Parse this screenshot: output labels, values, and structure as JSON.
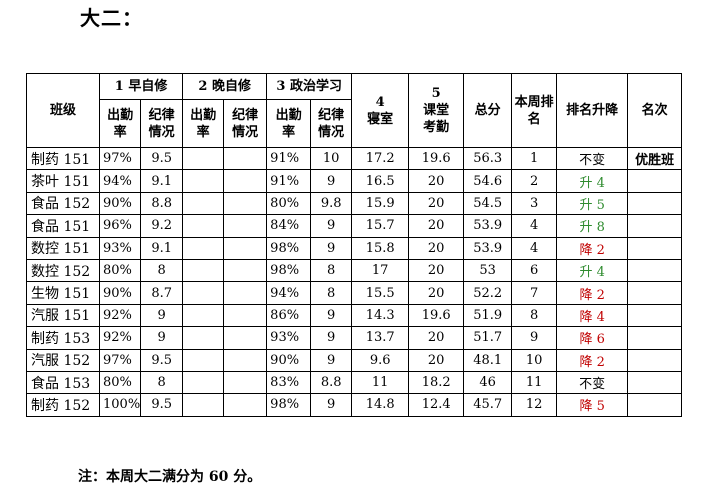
{
  "title": "大二：",
  "headers": {
    "class": "班级",
    "group1": "1 早自修",
    "group2": "2 晚自修",
    "group3": "3 政治学习",
    "attendance": "出勤率",
    "discipline": "纪律情况",
    "dorm_num": "4",
    "dorm": "寝室",
    "class_num": "5",
    "class_attendance": "课堂考勤",
    "total": "总分",
    "rank": "本周排名",
    "change": "排名升降",
    "honor": "名次"
  },
  "rows": [
    {
      "cls": "制药 151",
      "a1": "97%",
      "d1": "9.5",
      "a2": "",
      "d2": "",
      "a3": "91%",
      "d3": "10",
      "dorm": "17.2",
      "ca": "19.6",
      "total": "56.3",
      "rank": "1",
      "change": "不变",
      "change_dir": "same",
      "honor": "优胜班"
    },
    {
      "cls": "茶叶 151",
      "a1": "94%",
      "d1": "9.1",
      "a2": "",
      "d2": "",
      "a3": "91%",
      "d3": "9",
      "dorm": "16.5",
      "ca": "20",
      "total": "54.6",
      "rank": "2",
      "change": "升 4",
      "change_dir": "up",
      "honor": ""
    },
    {
      "cls": "食品 152",
      "a1": "90%",
      "d1": "8.8",
      "a2": "",
      "d2": "",
      "a3": "80%",
      "d3": "9.8",
      "dorm": "15.9",
      "ca": "20",
      "total": "54.5",
      "rank": "3",
      "change": "升 5",
      "change_dir": "up",
      "honor": ""
    },
    {
      "cls": "食品 151",
      "a1": "96%",
      "d1": "9.2",
      "a2": "",
      "d2": "",
      "a3": "84%",
      "d3": "9",
      "dorm": "15.7",
      "ca": "20",
      "total": "53.9",
      "rank": "4",
      "change": "升 8",
      "change_dir": "up",
      "honor": ""
    },
    {
      "cls": "数控 151",
      "a1": "93%",
      "d1": "9.1",
      "a2": "",
      "d2": "",
      "a3": "98%",
      "d3": "9",
      "dorm": "15.8",
      "ca": "20",
      "total": "53.9",
      "rank": "4",
      "change": "降 2",
      "change_dir": "down",
      "honor": ""
    },
    {
      "cls": "数控 152",
      "a1": "80%",
      "d1": "8",
      "a2": "",
      "d2": "",
      "a3": "98%",
      "d3": "8",
      "dorm": "17",
      "ca": "20",
      "total": "53",
      "rank": "6",
      "change": "升 4",
      "change_dir": "up",
      "honor": ""
    },
    {
      "cls": "生物 151",
      "a1": "90%",
      "d1": "8.7",
      "a2": "",
      "d2": "",
      "a3": "94%",
      "d3": "8",
      "dorm": "15.5",
      "ca": "20",
      "total": "52.2",
      "rank": "7",
      "change": "降 2",
      "change_dir": "down",
      "honor": ""
    },
    {
      "cls": "汽服 151",
      "a1": "92%",
      "d1": "9",
      "a2": "",
      "d2": "",
      "a3": "86%",
      "d3": "9",
      "dorm": "14.3",
      "ca": "19.6",
      "total": "51.9",
      "rank": "8",
      "change": "降 4",
      "change_dir": "down",
      "honor": ""
    },
    {
      "cls": "制药 153",
      "a1": "92%",
      "d1": "9",
      "a2": "",
      "d2": "",
      "a3": "93%",
      "d3": "9",
      "dorm": "13.7",
      "ca": "20",
      "total": "51.7",
      "rank": "9",
      "change": "降 6",
      "change_dir": "down",
      "honor": ""
    },
    {
      "cls": "汽服 152",
      "a1": "97%",
      "d1": "9.5",
      "a2": "",
      "d2": "",
      "a3": "90%",
      "d3": "9",
      "dorm": "9.6",
      "ca": "20",
      "total": "48.1",
      "rank": "10",
      "change": "降 2",
      "change_dir": "down",
      "honor": ""
    },
    {
      "cls": "食品 153",
      "a1": "80%",
      "d1": "8",
      "a2": "",
      "d2": "",
      "a3": "83%",
      "d3": "8.8",
      "dorm": "11",
      "ca": "18.2",
      "total": "46",
      "rank": "11",
      "change": "不变",
      "change_dir": "same",
      "honor": ""
    },
    {
      "cls": "制药 152",
      "a1": "100%",
      "d1": "9.5",
      "a2": "",
      "d2": "",
      "a3": "98%",
      "d3": "9",
      "dorm": "14.8",
      "ca": "12.4",
      "total": "45.7",
      "rank": "12",
      "change": "降 5",
      "change_dir": "down",
      "honor": ""
    }
  ],
  "note": "注：本周大二满分为 60 分。"
}
